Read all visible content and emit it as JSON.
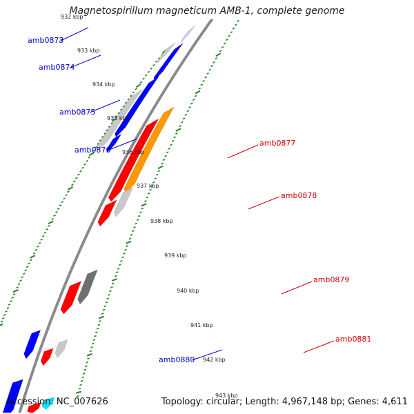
{
  "title": "Magnetospirillum magneticum AMB-1, complete genome",
  "footer": {
    "accession": "Accession: NC_007626",
    "summary": "Topology: circular; Length: 4,967,148 bp; Genes: 4,611"
  },
  "colors": {
    "backbone": "#8a8a8a",
    "tick": "#2e8b2e",
    "left_label": "#0000cc",
    "right_label": "#cc0000",
    "gene_blue": "#0000ff",
    "gene_red": "#ff0000",
    "gene_orange": "#ff9900",
    "gene_light_gray": "#c8c8c8",
    "gene_dark_gray": "#707070",
    "gene_cyan": "#00e5ff",
    "gene_lavender": "#ccccff"
  },
  "ticks": [
    "932 kbp",
    "933 kbp",
    "934 kbp",
    "935 kbp",
    "936 kbp",
    "937 kbp",
    "938 kbp",
    "939 kbp",
    "940 kbp",
    "941 kbp",
    "942 kbp",
    "943 kbp"
  ],
  "left_labels": [
    "amb0873",
    "amb0874",
    "amb0875",
    "amb0876",
    "amb0880"
  ],
  "right_labels": [
    "amb0877",
    "amb0878",
    "amb0879",
    "amb0881"
  ],
  "genes": [
    {
      "id": "g-lav",
      "color": "gene_lavender",
      "side": "left"
    },
    {
      "id": "g-top-gray",
      "color": "gene_light_gray",
      "side": "left"
    },
    {
      "id": "amb0873",
      "color": "gene_blue",
      "side": "left"
    },
    {
      "id": "amb0874-gray",
      "color": "gene_light_gray",
      "side": "left"
    },
    {
      "id": "amb0874",
      "color": "gene_blue",
      "side": "left"
    },
    {
      "id": "amb0876",
      "color": "gene_blue",
      "side": "left"
    },
    {
      "id": "amb0877-red",
      "color": "gene_red",
      "side": "right"
    },
    {
      "id": "amb0877-orange",
      "color": "gene_orange",
      "side": "right"
    },
    {
      "id": "amb0878-red",
      "color": "gene_red",
      "side": "right"
    },
    {
      "id": "amb0878-gray",
      "color": "gene_light_gray",
      "side": "right"
    },
    {
      "id": "amb0879-red",
      "color": "gene_red",
      "side": "right"
    },
    {
      "id": "amb0879-dark",
      "color": "gene_dark_gray",
      "side": "right"
    },
    {
      "id": "amb0880",
      "color": "gene_blue",
      "side": "left"
    },
    {
      "id": "amb0881-red",
      "color": "gene_red",
      "side": "right"
    },
    {
      "id": "amb0881-gray",
      "color": "gene_light_gray",
      "side": "right"
    },
    {
      "id": "bottom-blue",
      "color": "gene_blue",
      "side": "left"
    },
    {
      "id": "bottom-red",
      "color": "gene_red",
      "side": "right"
    },
    {
      "id": "bottom-cyan",
      "color": "gene_cyan",
      "side": "right"
    }
  ]
}
